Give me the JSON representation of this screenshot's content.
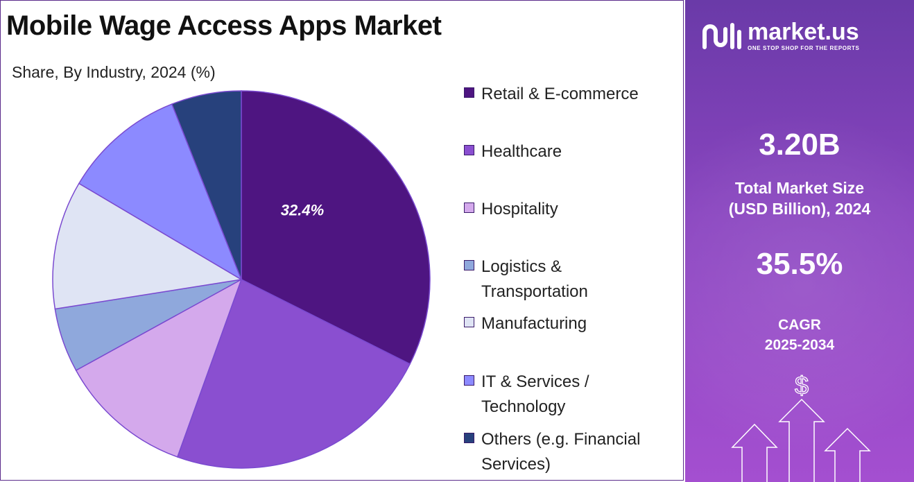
{
  "title": "Mobile Wage Access Apps Market",
  "subtitle": "Share, By Industry, 2024 (%)",
  "chart_data": {
    "type": "pie",
    "title": "Mobile Wage Access Apps Market",
    "subtitle": "Share, By Industry, 2024 (%)",
    "legend_position": "right",
    "categories": [
      "Retail & E-commerce",
      "Healthcare",
      "Hospitality",
      "Logistics & Transportation",
      "Manufacturing",
      "IT & Services / Technology",
      "Others (e.g. Financial Services)"
    ],
    "values": [
      32.4,
      23.1,
      11.5,
      5.5,
      11.0,
      10.5,
      6.0
    ],
    "data_labels": [
      "32.4%",
      "",
      "",
      "",
      "",
      "",
      ""
    ],
    "colors": [
      "#4e1581",
      "#8a4fd0",
      "#d4a9ec",
      "#8fa8dc",
      "#dfe4f4",
      "#8c8aff",
      "#27417c"
    ]
  },
  "legend": [
    {
      "lines": [
        "Retail & E-commerce"
      ],
      "color": "#4e1581"
    },
    {
      "lines": [
        "Healthcare"
      ],
      "color": "#8a4fd0"
    },
    {
      "lines": [
        "Hospitality"
      ],
      "color": "#d4a9ec"
    },
    {
      "lines": [
        "Logistics &",
        "Transportation"
      ],
      "color": "#8fa8dc"
    },
    {
      "lines": [
        "Manufacturing"
      ],
      "color": "#dfe4f4"
    },
    {
      "lines": [
        "IT & Services /",
        "Technology"
      ],
      "color": "#8c8aff"
    },
    {
      "lines": [
        "Others (e.g. Financial",
        "Services)"
      ],
      "color": "#27417c"
    }
  ],
  "sidebar": {
    "brand": "market.us",
    "tagline": "ONE STOP SHOP FOR THE REPORTS",
    "market_size_value": "3.20B",
    "market_size_label_line1": "Total Market Size",
    "market_size_label_line2": "(USD Billion), 2024",
    "cagr_value": "35.5%",
    "cagr_label_line1": "CAGR",
    "cagr_label_line2": "2025-2034",
    "dollar_symbol": "$",
    "icons": [
      "market-us-logo-icon",
      "dollar-icon",
      "up-arrow-icon"
    ]
  }
}
